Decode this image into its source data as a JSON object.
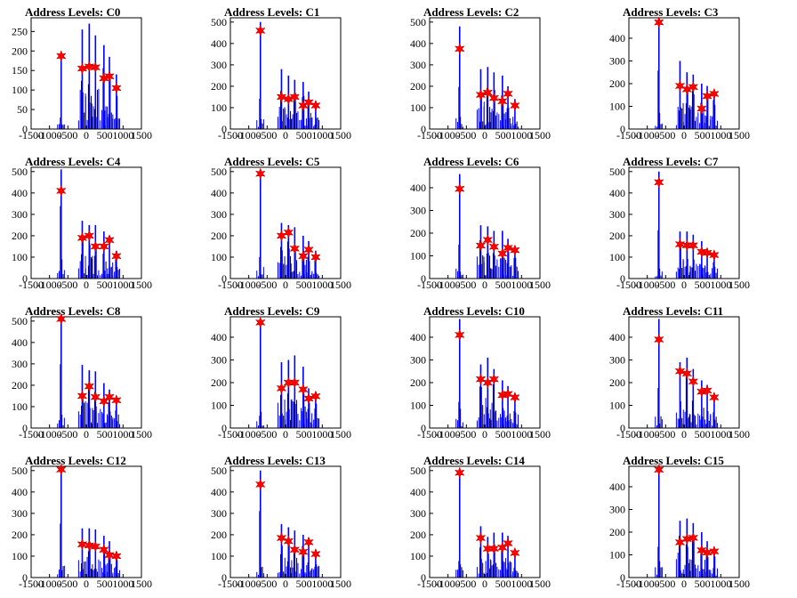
{
  "colors": {
    "histogram": "#0000ff",
    "histogram_dark": "#000000",
    "marker": "#ff0000"
  },
  "chart_data": [
    {
      "type": "bar",
      "title": "Address Levels: C0",
      "xlim": [
        -1500,
        1500
      ],
      "ylim": [
        0,
        285
      ],
      "xticks": [
        "-1500",
        "-1000",
        "-500",
        "0",
        "500",
        "1000",
        "1500"
      ],
      "yticks": [
        0,
        50,
        100,
        150,
        200,
        250
      ],
      "peaks_x": [
        -683,
        -110,
        80,
        250,
        480,
        630,
        820
      ],
      "peaks_y": [
        187,
        155,
        160,
        158,
        130,
        135,
        105
      ],
      "spike_max": [
        190,
        255,
        270,
        240,
        215,
        185,
        140
      ]
    },
    {
      "type": "bar",
      "title": "Address Levels: C1",
      "xlim": [
        -1500,
        1500
      ],
      "ylim": [
        0,
        520
      ],
      "xticks": [
        "-1500",
        "-1000",
        "-500",
        "0",
        "500",
        "1000",
        "1500"
      ],
      "yticks": [
        0,
        100,
        200,
        300,
        400,
        500
      ],
      "peaks_x": [
        -683,
        -110,
        80,
        250,
        480,
        630,
        820
      ],
      "peaks_y": [
        460,
        150,
        140,
        150,
        110,
        125,
        110
      ],
      "spike_max": [
        500,
        280,
        250,
        230,
        220,
        175,
        130
      ]
    },
    {
      "type": "bar",
      "title": "Address Levels: C2",
      "xlim": [
        -1500,
        1500
      ],
      "ylim": [
        0,
        520
      ],
      "xticks": [
        "-1500",
        "-1000",
        "-500",
        "0",
        "500",
        "1000",
        "1500"
      ],
      "yticks": [
        0,
        100,
        200,
        300,
        400,
        500
      ],
      "peaks_x": [
        -683,
        -110,
        80,
        250,
        480,
        630,
        820
      ],
      "peaks_y": [
        375,
        160,
        170,
        145,
        130,
        165,
        110
      ],
      "spike_max": [
        480,
        280,
        290,
        265,
        250,
        200,
        140
      ]
    },
    {
      "type": "bar",
      "title": "Address Levels: C3",
      "xlim": [
        -1500,
        1500
      ],
      "ylim": [
        0,
        490
      ],
      "xticks": [
        "-1500",
        "-1000",
        "-500",
        "0",
        "500",
        "1000",
        "1500"
      ],
      "yticks": [
        0,
        100,
        200,
        300,
        400
      ],
      "peaks_x": [
        -683,
        -110,
        80,
        250,
        480,
        630,
        820
      ],
      "peaks_y": [
        470,
        190,
        175,
        185,
        90,
        145,
        155
      ],
      "spike_max": [
        480,
        300,
        250,
        240,
        200,
        190,
        170
      ]
    },
    {
      "type": "bar",
      "title": "Address Levels: C4",
      "xlim": [
        -1500,
        1500
      ],
      "ylim": [
        0,
        520
      ],
      "xticks": [
        "-1500",
        "-1000",
        "-500",
        "0",
        "500",
        "1000",
        "1500"
      ],
      "yticks": [
        0,
        100,
        200,
        300,
        400,
        500
      ],
      "peaks_x": [
        -683,
        -110,
        80,
        250,
        480,
        630,
        820
      ],
      "peaks_y": [
        410,
        190,
        200,
        150,
        150,
        180,
        105
      ],
      "spike_max": [
        510,
        270,
        250,
        250,
        220,
        200,
        130
      ]
    },
    {
      "type": "bar",
      "title": "Address Levels: C5",
      "xlim": [
        -1500,
        1500
      ],
      "ylim": [
        0,
        520
      ],
      "xticks": [
        "-1500",
        "-1000",
        "-500",
        "0",
        "500",
        "1000",
        "1500"
      ],
      "yticks": [
        0,
        100,
        200,
        300,
        400,
        500
      ],
      "peaks_x": [
        -683,
        -110,
        80,
        250,
        480,
        630,
        820
      ],
      "peaks_y": [
        490,
        200,
        215,
        140,
        105,
        135,
        100
      ],
      "spike_max": [
        510,
        260,
        250,
        240,
        200,
        175,
        130
      ]
    },
    {
      "type": "bar",
      "title": "Address Levels: C6",
      "xlim": [
        -1500,
        1500
      ],
      "ylim": [
        0,
        490
      ],
      "xticks": [
        "-1500",
        "-1000",
        "-500",
        "0",
        "500",
        "1000",
        "1500"
      ],
      "yticks": [
        0,
        100,
        200,
        300,
        400
      ],
      "peaks_x": [
        -683,
        -110,
        80,
        250,
        480,
        630,
        820
      ],
      "peaks_y": [
        395,
        145,
        170,
        140,
        110,
        135,
        125
      ],
      "spike_max": [
        460,
        235,
        230,
        210,
        210,
        175,
        140
      ]
    },
    {
      "type": "bar",
      "title": "Address Levels: C7",
      "xlim": [
        -1500,
        1500
      ],
      "ylim": [
        0,
        520
      ],
      "xticks": [
        "-1500",
        "-1000",
        "-500",
        "0",
        "500",
        "1000",
        "1500"
      ],
      "yticks": [
        0,
        100,
        200,
        300,
        400,
        500
      ],
      "peaks_x": [
        -683,
        -110,
        80,
        250,
        480,
        630,
        820
      ],
      "peaks_y": [
        450,
        160,
        155,
        155,
        125,
        120,
        110
      ],
      "spike_max": [
        500,
        220,
        220,
        205,
        175,
        140,
        125
      ]
    },
    {
      "type": "bar",
      "title": "Address Levels: C8",
      "xlim": [
        -1500,
        1500
      ],
      "ylim": [
        0,
        520
      ],
      "xticks": [
        "-1500",
        "-1000",
        "-500",
        "0",
        "500",
        "1000",
        "1500"
      ],
      "yticks": [
        0,
        100,
        200,
        300,
        400,
        500
      ],
      "peaks_x": [
        -683,
        -110,
        80,
        250,
        480,
        630,
        820
      ],
      "peaks_y": [
        510,
        150,
        195,
        145,
        125,
        145,
        130
      ],
      "spike_max": [
        515,
        295,
        270,
        265,
        210,
        180,
        145
      ]
    },
    {
      "type": "bar",
      "title": "Address Levels: C9",
      "xlim": [
        -1500,
        1500
      ],
      "ylim": [
        0,
        490
      ],
      "xticks": [
        "-1500",
        "-1000",
        "-500",
        "0",
        "500",
        "1000",
        "1500"
      ],
      "yticks": [
        0,
        100,
        200,
        300,
        400
      ],
      "peaks_x": [
        -683,
        -110,
        80,
        250,
        480,
        630,
        820
      ],
      "peaks_y": [
        465,
        175,
        200,
        200,
        170,
        130,
        140
      ],
      "spike_max": [
        480,
        290,
        300,
        320,
        270,
        175,
        160
      ]
    },
    {
      "type": "bar",
      "title": "Address Levels: C10",
      "xlim": [
        -1500,
        1500
      ],
      "ylim": [
        0,
        490
      ],
      "xticks": [
        "-1500",
        "-1000",
        "-500",
        "0",
        "500",
        "1000",
        "1500"
      ],
      "yticks": [
        0,
        100,
        200,
        300,
        400
      ],
      "peaks_x": [
        -683,
        -110,
        80,
        250,
        480,
        630,
        820
      ],
      "peaks_y": [
        410,
        215,
        200,
        215,
        145,
        150,
        135
      ],
      "spike_max": [
        480,
        280,
        310,
        260,
        210,
        185,
        150
      ]
    },
    {
      "type": "bar",
      "title": "Address Levels: C11",
      "xlim": [
        -1500,
        1500
      ],
      "ylim": [
        0,
        490
      ],
      "xticks": [
        "-1500",
        "-1000",
        "-500",
        "0",
        "500",
        "1000",
        "1500"
      ],
      "yticks": [
        0,
        100,
        200,
        300,
        400
      ],
      "peaks_x": [
        -683,
        -110,
        80,
        250,
        480,
        630,
        820
      ],
      "peaks_y": [
        390,
        250,
        240,
        205,
        160,
        165,
        135
      ],
      "spike_max": [
        480,
        290,
        310,
        260,
        210,
        190,
        150
      ]
    },
    {
      "type": "bar",
      "title": "Address Levels: C12",
      "xlim": [
        -1500,
        1500
      ],
      "ylim": [
        0,
        520
      ],
      "xticks": [
        "-1500",
        "-1000",
        "-500",
        "0",
        "500",
        "1000",
        "1500"
      ],
      "yticks": [
        0,
        100,
        200,
        300,
        400,
        500
      ],
      "peaks_x": [
        -683,
        -110,
        80,
        250,
        480,
        630,
        820
      ],
      "peaks_y": [
        505,
        155,
        150,
        145,
        130,
        105,
        100
      ],
      "spike_max": [
        510,
        230,
        230,
        225,
        195,
        170,
        120
      ]
    },
    {
      "type": "bar",
      "title": "Address Levels: C13",
      "xlim": [
        -1500,
        1500
      ],
      "ylim": [
        0,
        520
      ],
      "xticks": [
        "-1500",
        "-1000",
        "-500",
        "0",
        "500",
        "1000",
        "1500"
      ],
      "yticks": [
        0,
        100,
        200,
        300,
        400,
        500
      ],
      "peaks_x": [
        -683,
        -110,
        80,
        250,
        480,
        630,
        820
      ],
      "peaks_y": [
        435,
        185,
        170,
        130,
        120,
        165,
        110
      ],
      "spike_max": [
        500,
        250,
        235,
        220,
        200,
        185,
        130
      ]
    },
    {
      "type": "bar",
      "title": "Address Levels: C14",
      "xlim": [
        -1500,
        1500
      ],
      "ylim": [
        0,
        520
      ],
      "xticks": [
        "-1500",
        "-1000",
        "-500",
        "0",
        "500",
        "1000",
        "1500"
      ],
      "yticks": [
        0,
        100,
        200,
        300,
        400,
        500
      ],
      "peaks_x": [
        -683,
        -110,
        80,
        250,
        480,
        630,
        820
      ],
      "peaks_y": [
        490,
        185,
        135,
        135,
        140,
        160,
        115
      ],
      "spike_max": [
        500,
        240,
        190,
        210,
        210,
        195,
        130
      ]
    },
    {
      "type": "bar",
      "title": "Address Levels: C15",
      "xlim": [
        -1500,
        1500
      ],
      "ylim": [
        0,
        490
      ],
      "xticks": [
        "-1500",
        "-1000",
        "-500",
        "0",
        "500",
        "1000",
        "1500"
      ],
      "yticks": [
        0,
        100,
        200,
        300,
        400
      ],
      "peaks_x": [
        -683,
        -110,
        80,
        250,
        480,
        630,
        820
      ],
      "peaks_y": [
        475,
        155,
        170,
        175,
        120,
        110,
        115
      ],
      "spike_max": [
        480,
        250,
        260,
        240,
        200,
        160,
        130
      ]
    }
  ]
}
